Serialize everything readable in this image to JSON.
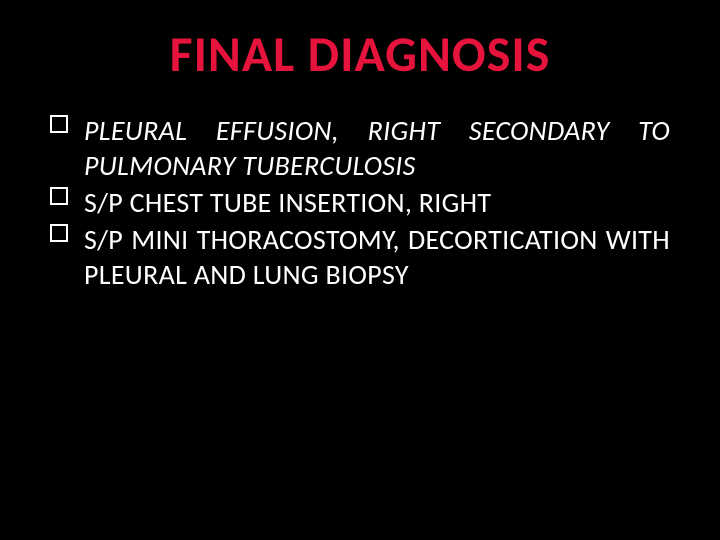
{
  "title": "FINAL  DIAGNOSIS",
  "title_color": "#e6143c",
  "background_color": "#000000",
  "text_color": "#ffffff",
  "title_fontsize": 50,
  "body_fontsize": 28,
  "items": [
    {
      "text_pre": "PLEURAL  EFFUSION,  RIGHT  SECONDARY  TO PULMONARY  TUBERCULOSIS",
      "italic_pre": true
    },
    {
      "text_pre": "S/P  CHEST TUBE INSERTION, RIGHT",
      "italic_pre": false
    },
    {
      "text_pre": "S/P   MINI  THORACOSTOMY,  DECORTICATION WITH PLEURAL AND LUNG BIOPSY",
      "italic_pre": false
    }
  ]
}
